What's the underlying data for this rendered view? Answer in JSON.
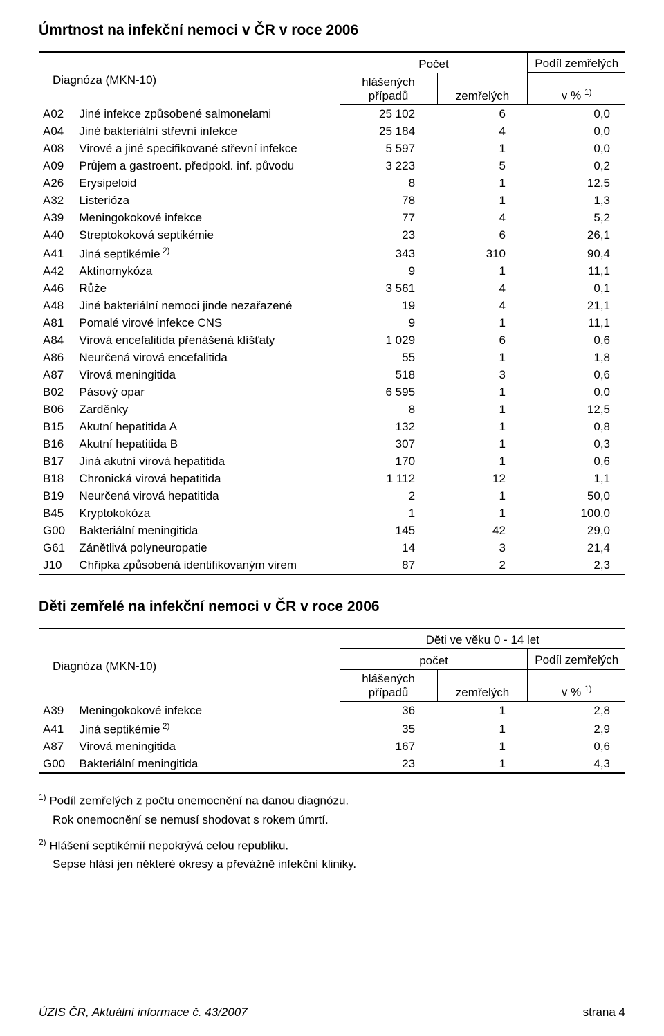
{
  "title1": "Úmrtnost na infekční nemoci v ČR v roce 2006",
  "title2": "Děti zemřelé na infekční nemoci v ČR v roce 2006",
  "headers": {
    "diag": "Diagnóza (MKN-10)",
    "pocet": "Počet",
    "podil": "Podíl zemřelých",
    "podil_sub": "v %",
    "podil_sup": "1)",
    "hlasenych": "hlášených případů",
    "zemrelych": "zemřelých",
    "deti_top": "Děti ve věku 0 - 14 let",
    "deti_pocet": "počet"
  },
  "table1": [
    {
      "code": "A02",
      "diag": "Jiné infekce způsobené salmonelami",
      "n1": "25 102",
      "n2": "6",
      "n3": "0,0"
    },
    {
      "code": "A04",
      "diag": "Jiné bakteriální střevní infekce",
      "n1": "25 184",
      "n2": "4",
      "n3": "0,0"
    },
    {
      "code": "A08",
      "diag": "Virové a jiné specifikované střevní infekce",
      "n1": "5 597",
      "n2": "1",
      "n3": "0,0"
    },
    {
      "code": "A09",
      "diag": "Průjem a gastroent. předpokl. inf. původu",
      "n1": "3 223",
      "n2": "5",
      "n3": "0,2"
    },
    {
      "code": "A26",
      "diag": "Erysipeloid",
      "n1": "8",
      "n2": "1",
      "n3": "12,5"
    },
    {
      "code": "A32",
      "diag": "Listerióza",
      "n1": "78",
      "n2": "1",
      "n3": "1,3"
    },
    {
      "code": "A39",
      "diag": "Meningokokové infekce",
      "n1": "77",
      "n2": "4",
      "n3": "5,2"
    },
    {
      "code": "A40",
      "diag": "Streptokoková septikémie",
      "n1": "23",
      "n2": "6",
      "n3": "26,1"
    },
    {
      "code": "A41",
      "diag": "Jiná septikémie",
      "sup": "2)",
      "n1": "343",
      "n2": "310",
      "n3": "90,4"
    },
    {
      "code": "A42",
      "diag": "Aktinomykóza",
      "n1": "9",
      "n2": "1",
      "n3": "11,1"
    },
    {
      "code": "A46",
      "diag": "Růže",
      "n1": "3 561",
      "n2": "4",
      "n3": "0,1"
    },
    {
      "code": "A48",
      "diag": "Jiné bakteriální nemoci jinde nezařazené",
      "n1": "19",
      "n2": "4",
      "n3": "21,1"
    },
    {
      "code": "A81",
      "diag": "Pomalé virové infekce CNS",
      "n1": "9",
      "n2": "1",
      "n3": "11,1"
    },
    {
      "code": "A84",
      "diag": "Virová encefalitida přenášená klíšťaty",
      "n1": "1 029",
      "n2": "6",
      "n3": "0,6"
    },
    {
      "code": "A86",
      "diag": "Neurčená virová encefalitida",
      "n1": "55",
      "n2": "1",
      "n3": "1,8"
    },
    {
      "code": "A87",
      "diag": "Virová meningitida",
      "n1": "518",
      "n2": "3",
      "n3": "0,6"
    },
    {
      "code": "B02",
      "diag": "Pásový opar",
      "n1": "6 595",
      "n2": "1",
      "n3": "0,0"
    },
    {
      "code": "B06",
      "diag": "Zarděnky",
      "n1": "8",
      "n2": "1",
      "n3": "12,5"
    },
    {
      "code": "B15",
      "diag": "Akutní hepatitida A",
      "n1": "132",
      "n2": "1",
      "n3": "0,8"
    },
    {
      "code": "B16",
      "diag": "Akutní hepatitida B",
      "n1": "307",
      "n2": "1",
      "n3": "0,3"
    },
    {
      "code": "B17",
      "diag": "Jiná akutní virová hepatitida",
      "n1": "170",
      "n2": "1",
      "n3": "0,6"
    },
    {
      "code": "B18",
      "diag": "Chronická virová hepatitida",
      "n1": "1 112",
      "n2": "12",
      "n3": "1,1"
    },
    {
      "code": "B19",
      "diag": "Neurčená virová hepatitida",
      "n1": "2",
      "n2": "1",
      "n3": "50,0"
    },
    {
      "code": "B45",
      "diag": "Kryptokokóza",
      "n1": "1",
      "n2": "1",
      "n3": "100,0"
    },
    {
      "code": "G00",
      "diag": "Bakteriální meningitida",
      "n1": "145",
      "n2": "42",
      "n3": "29,0"
    },
    {
      "code": "G61",
      "diag": "Zánětlivá polyneuropatie",
      "n1": "14",
      "n2": "3",
      "n3": "21,4"
    },
    {
      "code": "J10",
      "diag": "Chřipka způsobená identifikovaným virem",
      "n1": "87",
      "n2": "2",
      "n3": "2,3"
    }
  ],
  "table2": [
    {
      "code": "A39",
      "diag": "Meningokokové infekce",
      "n1": "36",
      "n2": "1",
      "n3": "2,8"
    },
    {
      "code": "A41",
      "diag": "Jiná septikémie",
      "sup": "2)",
      "n1": "35",
      "n2": "1",
      "n3": "2,9"
    },
    {
      "code": "A87",
      "diag": "Virová meningitida",
      "n1": "167",
      "n2": "1",
      "n3": "0,6"
    },
    {
      "code": "G00",
      "diag": "Bakteriální meningitida",
      "n1": "23",
      "n2": "1",
      "n3": "4,3"
    }
  ],
  "footnotes": {
    "f1_sup": "1)",
    "f1_a": "Podíl zemřelých z počtu onemocnění na danou diagnózu.",
    "f1_b": "Rok onemocnění se nemusí shodovat s rokem úmrtí.",
    "f2_sup": "2)",
    "f2_a": "Hlášení septikémií nepokrývá celou republiku.",
    "f2_b": "Sepse hlásí jen některé okresy a převážně infekční kliniky."
  },
  "footer": {
    "left": "ÚZIS ČR, Aktuální informace č. 43/2007",
    "right": "strana 4"
  }
}
